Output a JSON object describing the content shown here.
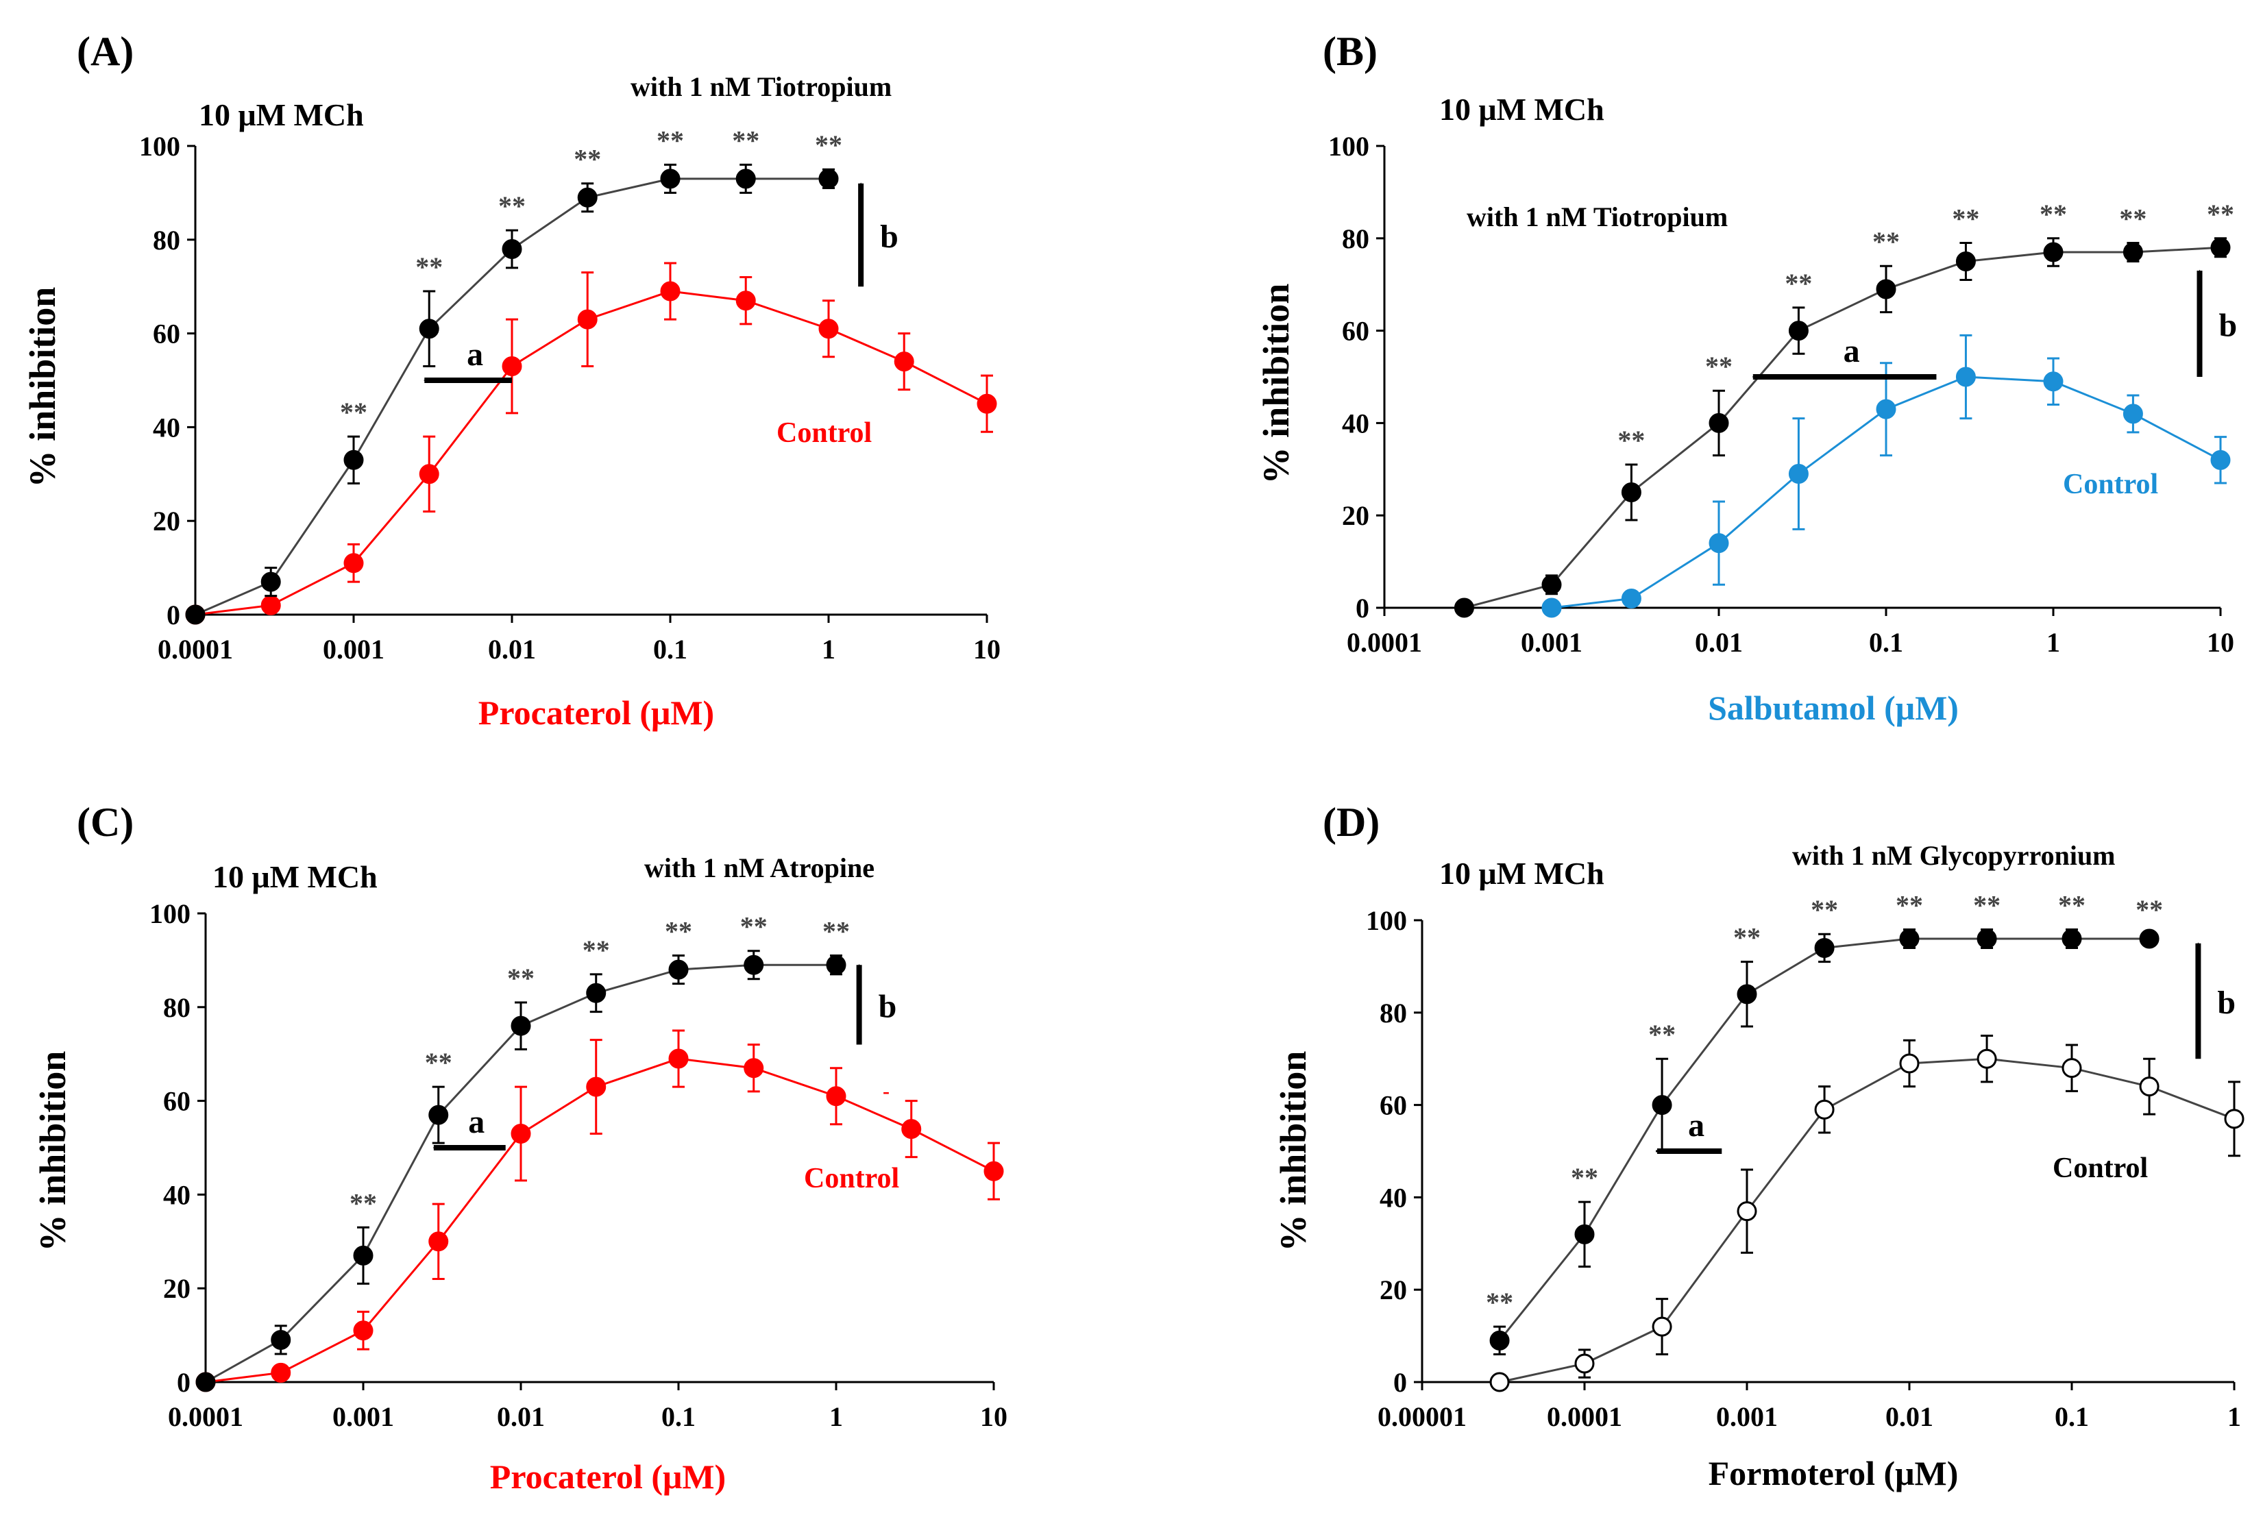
{
  "figure": {
    "colors": {
      "black": "#000000",
      "red": "#ff0000",
      "blue": "#1b8fd6",
      "gray": "#444444"
    }
  },
  "chart_data": [
    {
      "panel_label": "(A)",
      "type": "line",
      "title": "10 μM MCh",
      "xlabel": "Procaterol (μM)",
      "xlabel_color": "#ff0000",
      "ylabel": "% inhibition",
      "xscale": "log",
      "xlim": [
        0.0001,
        10
      ],
      "ylim": [
        0,
        100
      ],
      "xticks": [
        0.0001,
        0.001,
        0.01,
        0.1,
        1,
        10
      ],
      "xtick_labels": [
        "0.0001",
        "0.001",
        "0.01",
        "0.1",
        "1",
        "10"
      ],
      "yticks": [
        0,
        20,
        40,
        60,
        80,
        100
      ],
      "ytick_labels": [
        "0",
        "20",
        "40",
        "60",
        "80",
        "100"
      ],
      "series": [
        {
          "name": "with 1 nM Tiotropium",
          "color": "#000000",
          "filled": true,
          "x": [
            0.0001,
            0.0003,
            0.001,
            0.003,
            0.01,
            0.03,
            0.1,
            0.3,
            1
          ],
          "y": [
            0,
            7,
            33,
            61,
            78,
            89,
            93,
            93,
            93
          ],
          "err": [
            0,
            3,
            5,
            8,
            4,
            3,
            3,
            3,
            2
          ],
          "sig": [
            "",
            "",
            "**",
            "**",
            "**",
            "**",
            "**",
            "**",
            "**"
          ]
        },
        {
          "name": "Control",
          "color": "#ff0000",
          "filled": true,
          "x": [
            0.0001,
            0.0003,
            0.001,
            0.003,
            0.01,
            0.03,
            0.1,
            0.3,
            1,
            3,
            10
          ],
          "y": [
            0,
            2,
            11,
            30,
            53,
            63,
            69,
            67,
            61,
            54,
            45
          ],
          "err": [
            0,
            1,
            4,
            8,
            10,
            10,
            6,
            5,
            6,
            6,
            6
          ],
          "sig": []
        }
      ],
      "annotations": {
        "with_label": "with  1 nM Tiotropium",
        "control_label": "Control",
        "control_color": "#ff0000",
        "arrow_a": "a",
        "arrow_b": "b",
        "sig_mark": "**",
        "arrow_a_y": 50,
        "arrow_a_x_from": 0.01,
        "arrow_a_x_to": 0.0028,
        "arrow_b_x": 1.6,
        "arrow_b_y_from": 70,
        "arrow_b_y_to": 92
      }
    },
    {
      "panel_label": "(B)",
      "type": "line",
      "title": "10 μM MCh",
      "xlabel": "Salbutamol (μM)",
      "xlabel_color": "#1b8fd6",
      "ylabel": "% inhibition",
      "xscale": "log",
      "xlim": [
        0.0001,
        10
      ],
      "ylim": [
        0,
        100
      ],
      "xticks": [
        0.0001,
        0.001,
        0.01,
        0.1,
        1,
        10
      ],
      "xtick_labels": [
        "0.0001",
        "0.001",
        "0.01",
        "0.1",
        "1",
        "10"
      ],
      "yticks": [
        0,
        20,
        40,
        60,
        80,
        100
      ],
      "ytick_labels": [
        "0",
        "20",
        "40",
        "60",
        "80",
        "100"
      ],
      "series": [
        {
          "name": "with 1 nM Tiotropium",
          "color": "#000000",
          "filled": true,
          "x": [
            0.0003,
            0.001,
            0.003,
            0.01,
            0.03,
            0.1,
            0.3,
            1,
            3,
            10
          ],
          "y": [
            0,
            5,
            25,
            40,
            60,
            69,
            75,
            77,
            77,
            78
          ],
          "err": [
            0,
            2,
            6,
            7,
            5,
            5,
            4,
            3,
            2,
            2
          ],
          "sig": [
            "",
            "",
            "**",
            "**",
            "**",
            "**",
            "**",
            "**",
            "**",
            "**"
          ]
        },
        {
          "name": "Control",
          "color": "#1b8fd6",
          "filled": true,
          "x": [
            0.001,
            0.003,
            0.01,
            0.03,
            0.1,
            0.3,
            1,
            3,
            10
          ],
          "y": [
            0,
            2,
            14,
            29,
            43,
            50,
            49,
            42,
            32
          ],
          "err": [
            0,
            1,
            9,
            12,
            10,
            9,
            5,
            4,
            5
          ],
          "sig": []
        }
      ],
      "annotations": {
        "with_label": "with  1 nM Tiotropium",
        "control_label": "Control",
        "control_color": "#1b8fd6",
        "arrow_a": "a",
        "arrow_b": "b",
        "sig_mark": "**",
        "arrow_a_y": 50,
        "arrow_a_x_from": 0.2,
        "arrow_a_x_to": 0.016,
        "arrow_b_x": 7.5,
        "arrow_b_y_from": 50,
        "arrow_b_y_to": 73
      }
    },
    {
      "panel_label": "(C)",
      "type": "line",
      "title": "10 μM MCh",
      "xlabel": "Procaterol (μM)",
      "xlabel_color": "#ff0000",
      "ylabel": "% inhibition",
      "xscale": "log",
      "xlim": [
        0.0001,
        10
      ],
      "ylim": [
        0,
        100
      ],
      "xticks": [
        0.0001,
        0.001,
        0.01,
        0.1,
        1,
        10
      ],
      "xtick_labels": [
        "0.0001",
        "0.001",
        "0.01",
        "0.1",
        "1",
        "10"
      ],
      "yticks": [
        0,
        20,
        40,
        60,
        80,
        100
      ],
      "ytick_labels": [
        "0",
        "20",
        "40",
        "60",
        "80",
        "100"
      ],
      "series": [
        {
          "name": "with 1 nM Atropine",
          "color": "#000000",
          "filled": true,
          "x": [
            0.0001,
            0.0003,
            0.001,
            0.003,
            0.01,
            0.03,
            0.1,
            0.3,
            1
          ],
          "y": [
            0,
            9,
            27,
            57,
            76,
            83,
            88,
            89,
            89
          ],
          "err": [
            0,
            3,
            6,
            6,
            5,
            4,
            3,
            3,
            2
          ],
          "sig": [
            "",
            "",
            "**",
            "**",
            "**",
            "**",
            "**",
            "**",
            "**"
          ]
        },
        {
          "name": "Control",
          "color": "#ff0000",
          "filled": true,
          "x": [
            0.0001,
            0.0003,
            0.001,
            0.003,
            0.01,
            0.03,
            0.1,
            0.3,
            1,
            3,
            10
          ],
          "y": [
            0,
            2,
            11,
            30,
            53,
            63,
            69,
            67,
            61,
            54,
            45
          ],
          "err": [
            0,
            1,
            4,
            8,
            10,
            10,
            6,
            5,
            6,
            6,
            6
          ],
          "sig": []
        }
      ],
      "annotations": {
        "with_label": "with  1 nM Atropine",
        "control_label": "Control",
        "control_color": "#ff0000",
        "arrow_a": "a",
        "arrow_b": "b",
        "sig_mark": "**",
        "stray_mark": "-",
        "arrow_a_y": 50,
        "arrow_a_x_from": 0.008,
        "arrow_a_x_to": 0.0028,
        "arrow_b_x": 1.4,
        "arrow_b_y_from": 72,
        "arrow_b_y_to": 89
      }
    },
    {
      "panel_label": "(D)",
      "type": "line",
      "title": "10 μM MCh",
      "xlabel": "Formoterol (μM)",
      "xlabel_color": "#000000",
      "ylabel": "% inhibition",
      "xscale": "log",
      "xlim": [
        1e-05,
        1
      ],
      "ylim": [
        0,
        100
      ],
      "xticks": [
        1e-05,
        0.0001,
        0.001,
        0.01,
        0.1,
        1
      ],
      "xtick_labels": [
        "0.00001",
        "0.0001",
        "0.001",
        "0.01",
        "0.1",
        "1"
      ],
      "yticks": [
        0,
        20,
        40,
        60,
        80,
        100
      ],
      "ytick_labels": [
        "0",
        "20",
        "40",
        "60",
        "80",
        "100"
      ],
      "series": [
        {
          "name": "with 1 nM Glycopyrronium",
          "color": "#000000",
          "filled": true,
          "x": [
            3e-05,
            0.0001,
            0.0003,
            0.001,
            0.003,
            0.01,
            0.03,
            0.1,
            0.3
          ],
          "y": [
            9,
            32,
            60,
            84,
            94,
            96,
            96,
            96,
            96
          ],
          "err": [
            3,
            7,
            10,
            7,
            3,
            2,
            2,
            2,
            1
          ],
          "sig": [
            "**",
            "**",
            "**",
            "**",
            "**",
            "**",
            "**",
            "**",
            "**"
          ]
        },
        {
          "name": "Control",
          "color": "#000000",
          "filled": false,
          "x": [
            3e-05,
            0.0001,
            0.0003,
            0.001,
            0.003,
            0.01,
            0.03,
            0.1,
            0.3,
            1
          ],
          "y": [
            0,
            4,
            12,
            37,
            59,
            69,
            70,
            68,
            64,
            57
          ],
          "err": [
            0,
            3,
            6,
            9,
            5,
            5,
            5,
            5,
            6,
            8
          ],
          "sig": []
        }
      ],
      "annotations": {
        "with_label": "with  1 nM Glycopyrronium",
        "control_label": "Control",
        "control_color": "#000000",
        "arrow_a": "a",
        "arrow_b": "b",
        "sig_mark": "**",
        "arrow_a_y": 50,
        "arrow_a_x_from": 0.0007,
        "arrow_a_x_to": 0.00028,
        "arrow_b_x": 0.6,
        "arrow_b_y_from": 70,
        "arrow_b_y_to": 95
      }
    }
  ]
}
